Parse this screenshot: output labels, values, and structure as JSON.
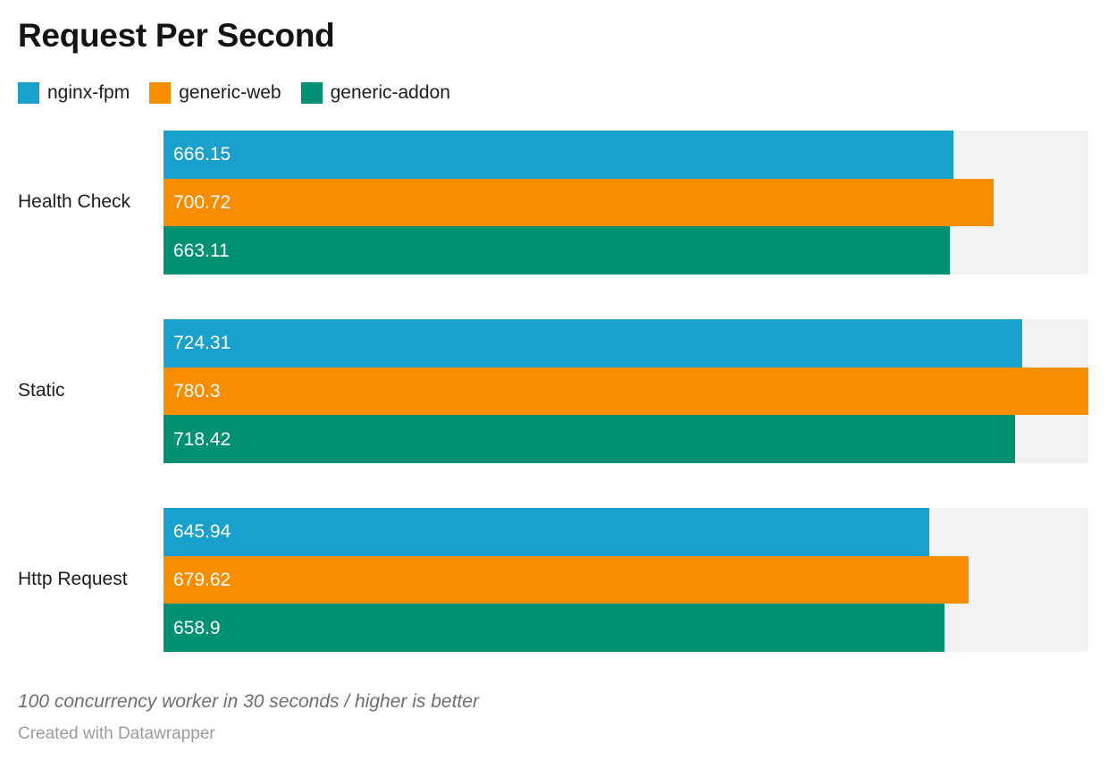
{
  "title": "Request Per Second",
  "legend": [
    {
      "label": "nginx-fpm",
      "color": "#1aa0cc"
    },
    {
      "label": "generic-web",
      "color": "#f98d00"
    },
    {
      "label": "generic-addon",
      "color": "#009173"
    }
  ],
  "chart_data": {
    "type": "bar",
    "orientation": "horizontal",
    "title": "Request Per Second",
    "categories": [
      "Health Check",
      "Static",
      "Http Request"
    ],
    "series": [
      {
        "name": "nginx-fpm",
        "color": "#1aa0cc",
        "values": [
          666.15,
          724.31,
          645.94
        ],
        "labels": [
          "666.15",
          "724.31",
          "645.94"
        ]
      },
      {
        "name": "generic-web",
        "color": "#f98d00",
        "values": [
          700.72,
          780.3,
          679.62
        ],
        "labels": [
          "700.72",
          "780.3",
          "679.62"
        ]
      },
      {
        "name": "generic-addon",
        "color": "#009173",
        "values": [
          663.11,
          718.42,
          658.9
        ],
        "labels": [
          "663.11",
          "718.42",
          "658.9"
        ]
      }
    ],
    "xlim": [
      0,
      780.3
    ],
    "grid": false,
    "legend_position": "top",
    "value_labels_inside_bars": true,
    "track_color": "#f2f2f2"
  },
  "footer": {
    "note": "100 concurrency worker in 30 seconds / higher is better",
    "attribution": "Created with Datawrapper"
  }
}
